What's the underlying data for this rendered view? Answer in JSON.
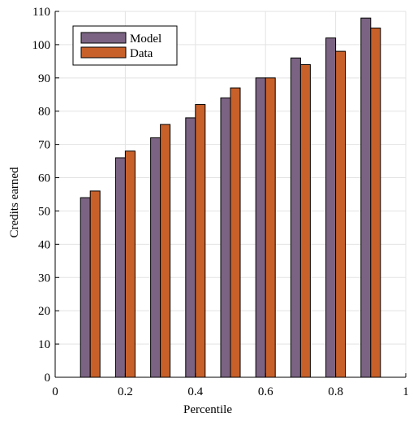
{
  "chart_data": {
    "type": "bar",
    "xlabel": "Percentile",
    "ylabel": "Credits earned",
    "xlim": [
      0,
      1
    ],
    "ylim": [
      0,
      110
    ],
    "xticks": [
      "0",
      "0.2",
      "0.4",
      "0.6",
      "0.8",
      "1"
    ],
    "yticks": [
      "0",
      "10",
      "20",
      "30",
      "40",
      "50",
      "60",
      "70",
      "80",
      "90",
      "100",
      "110"
    ],
    "x": [
      0.1,
      0.2,
      0.3,
      0.4,
      0.5,
      0.6,
      0.7,
      0.8,
      0.9
    ],
    "series": [
      {
        "name": "Model",
        "color": "#7b6483",
        "values": [
          54,
          66,
          72,
          78,
          84,
          90,
          96,
          102,
          108
        ]
      },
      {
        "name": "Data",
        "color": "#c8602a",
        "values": [
          56,
          68,
          76,
          82,
          87,
          90,
          94,
          98,
          105
        ]
      }
    ],
    "grid": true,
    "legend_position": "top-left"
  }
}
